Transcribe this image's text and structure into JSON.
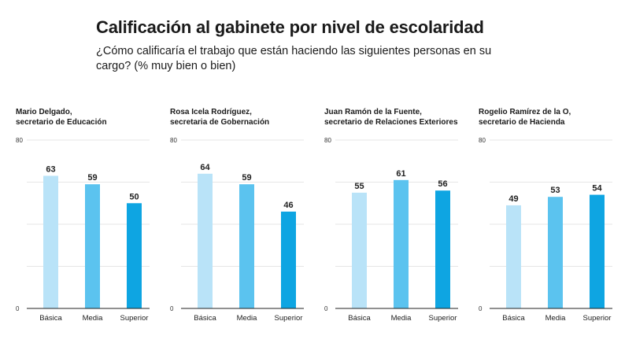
{
  "header": {
    "title": "Calificación al gabinete por nivel de escolaridad",
    "subtitle": "¿Cómo calificaría el trabajo que están haciendo las siguientes personas en su cargo? (% muy bien o bien)"
  },
  "colors": {
    "basica": "#b9e3f8",
    "media": "#5bc3ef",
    "superior": "#0ea5e2",
    "axis": "#222222",
    "grid": "#e6e6e6"
  },
  "chart_data": [
    {
      "type": "bar",
      "title_lines": [
        "Mario Delgado,",
        "secretario de Educación"
      ],
      "categories": [
        "Básica",
        "Media",
        "Superior"
      ],
      "values": [
        63,
        59,
        50
      ],
      "ylim": [
        0,
        80
      ],
      "y_tick_labels": [
        "0",
        "80"
      ]
    },
    {
      "type": "bar",
      "title_lines": [
        "Rosa Icela Rodríguez,",
        "secretaria de Gobernación"
      ],
      "categories": [
        "Básica",
        "Media",
        "Superior"
      ],
      "values": [
        64,
        59,
        46
      ],
      "ylim": [
        0,
        80
      ],
      "y_tick_labels": [
        "0",
        "80"
      ]
    },
    {
      "type": "bar",
      "title_lines": [
        "Juan Ramón de la Fuente,",
        "secretario de Relaciones Exteriores"
      ],
      "categories": [
        "Básica",
        "Media",
        "Superior"
      ],
      "values": [
        55,
        61,
        56
      ],
      "ylim": [
        0,
        80
      ],
      "y_tick_labels": [
        "0",
        "80"
      ]
    },
    {
      "type": "bar",
      "title_lines": [
        "Rogelio Ramírez de la O,",
        "secretario de Hacienda"
      ],
      "categories": [
        "Básica",
        "Media",
        "Superior"
      ],
      "values": [
        49,
        53,
        54
      ],
      "ylim": [
        0,
        80
      ],
      "y_tick_labels": [
        "0",
        "80"
      ]
    }
  ]
}
